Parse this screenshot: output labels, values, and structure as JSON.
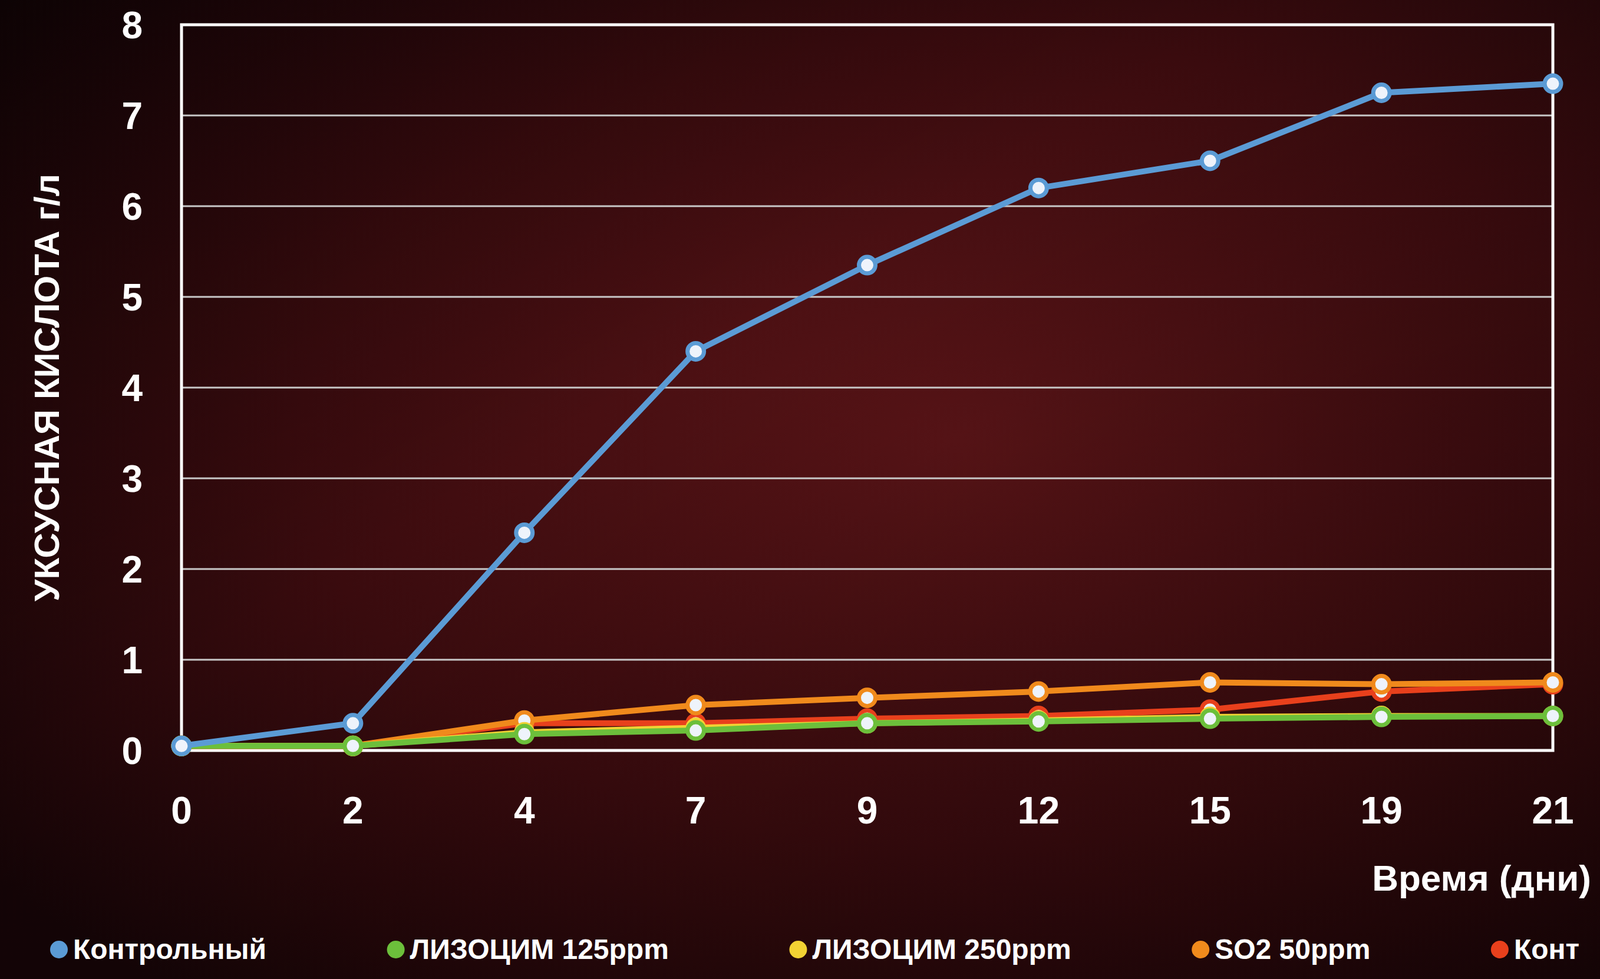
{
  "chart_data": {
    "type": "line",
    "y_label": "УКСУСНАЯ КИСЛОТА г/л",
    "x_label": "Время (дни)",
    "categories": [
      "0",
      "2",
      "4",
      "7",
      "9",
      "12",
      "15",
      "19",
      "21"
    ],
    "ylim": [
      0,
      8
    ],
    "yticks": [
      0,
      1,
      2,
      3,
      4,
      5,
      6,
      7,
      8
    ],
    "grid": true,
    "legend": "bottom",
    "series": [
      {
        "name": "Контрольный",
        "color": "#5b9bd5",
        "marker": "circle",
        "values": [
          0.05,
          0.3,
          2.4,
          4.4,
          5.35,
          6.2,
          6.5,
          7.25,
          7.35
        ]
      },
      {
        "name": "ЛИЗОЦИМ 125ppm",
        "color": "#6cbf3b",
        "marker": "circle",
        "values": [
          0.05,
          0.05,
          0.18,
          0.22,
          0.3,
          0.32,
          0.35,
          0.37,
          0.38
        ]
      },
      {
        "name": "ЛИЗОЦИМ 250ppm",
        "color": "#f2d233",
        "marker": "circle",
        "values": [
          0.05,
          0.05,
          0.2,
          0.25,
          0.3,
          0.33,
          0.37,
          0.38,
          0.38
        ]
      },
      {
        "name": "SO2 50ppm",
        "color": "#f08a1c",
        "marker": "circle",
        "values": [
          0.05,
          0.05,
          0.33,
          0.5,
          0.58,
          0.65,
          0.75,
          0.73,
          0.75
        ]
      },
      {
        "name": "Конт",
        "color": "#e8401c",
        "marker": "circle",
        "values": [
          0.05,
          0.05,
          0.3,
          0.3,
          0.35,
          0.38,
          0.45,
          0.65,
          0.73
        ]
      }
    ]
  }
}
